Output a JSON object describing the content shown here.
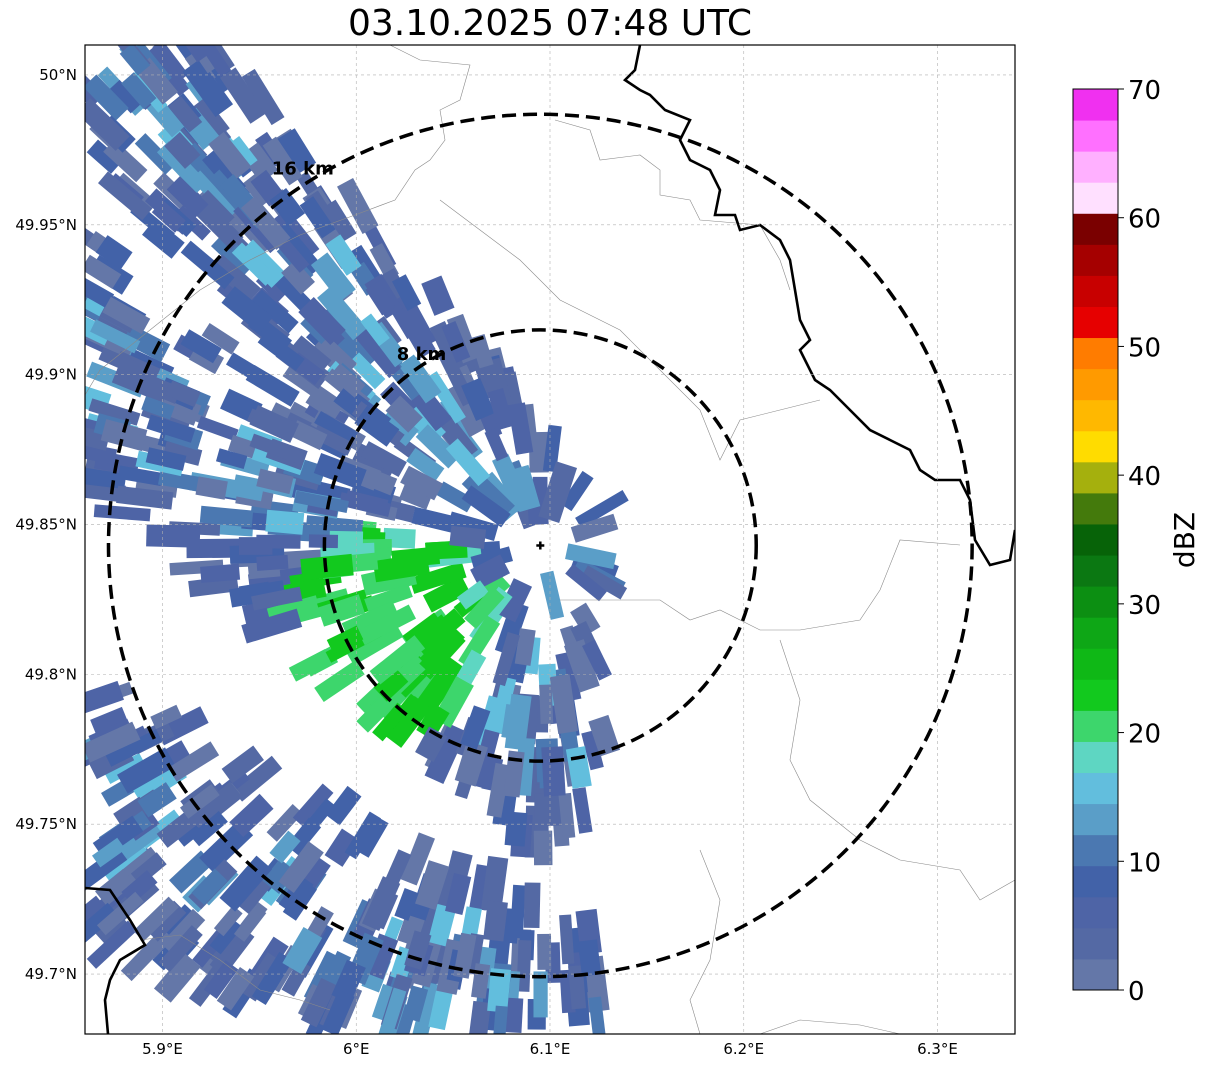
{
  "title": "03.10.2025 07:48 UTC",
  "map": {
    "lon_range": [
      5.86,
      6.34
    ],
    "lat_range": [
      49.68,
      50.01
    ],
    "x_ticks": [
      {
        "value": 5.9,
        "label": "5.9°E"
      },
      {
        "value": 6.0,
        "label": "6°E"
      },
      {
        "value": 6.1,
        "label": "6.1°E"
      },
      {
        "value": 6.2,
        "label": "6.2°E"
      },
      {
        "value": 6.3,
        "label": "6.3°E"
      }
    ],
    "y_ticks": [
      {
        "value": 50.0,
        "label": "50°N"
      },
      {
        "value": 49.95,
        "label": "49.95°N"
      },
      {
        "value": 49.9,
        "label": "49.9°N"
      },
      {
        "value": 49.85,
        "label": "49.85°N"
      },
      {
        "value": 49.8,
        "label": "49.8°N"
      },
      {
        "value": 49.75,
        "label": "49.75°N"
      },
      {
        "value": 49.7,
        "label": "49.7°N"
      }
    ],
    "radar_site": {
      "lon": 6.095,
      "lat": 49.843
    },
    "rings": [
      {
        "radius_km": 8,
        "label": "8 km"
      },
      {
        "radius_km": 16,
        "label": "16 km"
      }
    ]
  },
  "colorbar": {
    "label": "dBZ",
    "min": 0,
    "max": 70,
    "ticks": [
      0,
      10,
      20,
      30,
      40,
      50,
      60,
      70
    ],
    "colors": [
      "#6477a8",
      "#5469a4",
      "#4e64a6",
      "#4262a8",
      "#4b78b1",
      "#5a9ec8",
      "#62bedd",
      "#5ed6c2",
      "#3dd66c",
      "#12c91e",
      "#0fb816",
      "#0ea716",
      "#0c8f12",
      "#0b7812",
      "#076308",
      "#447a0c",
      "#a5b00d",
      "#ffdc00",
      "#ffb800",
      "#ff9a00",
      "#ff7c00",
      "#e60000",
      "#c80000",
      "#a50000",
      "#7a0000",
      "#ffe0ff",
      "#ffb0ff",
      "#ff70ff",
      "#f030f0"
    ]
  }
}
